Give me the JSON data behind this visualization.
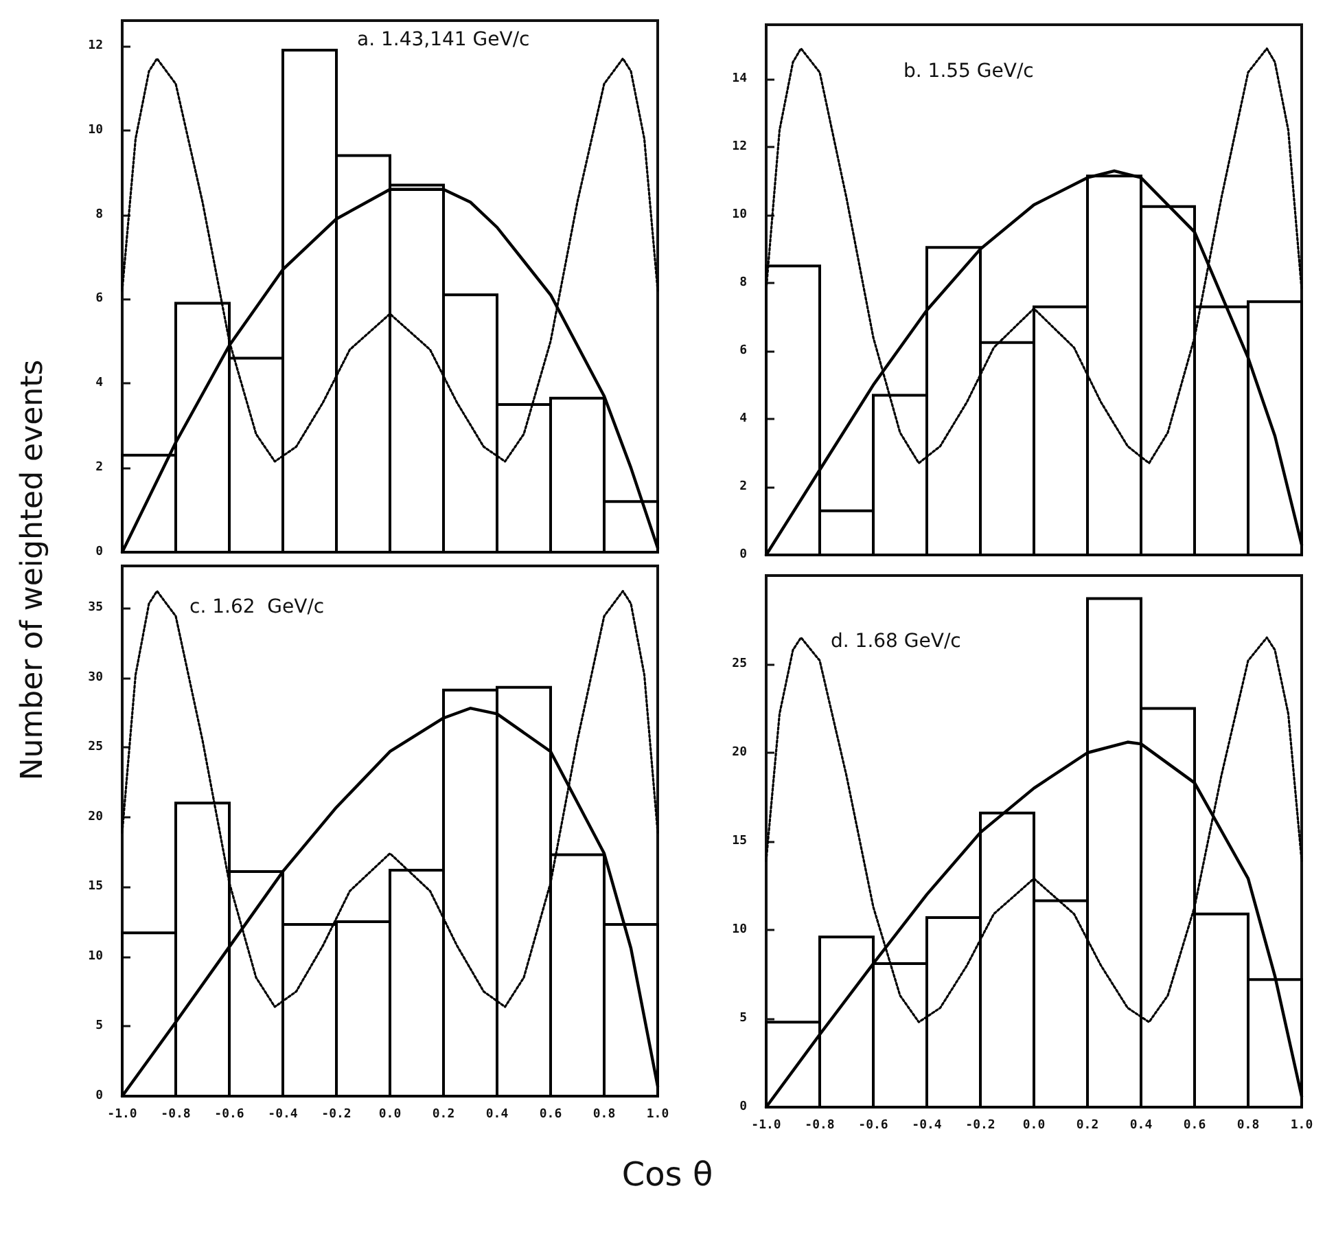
{
  "chart_data": [
    {
      "type": "histogram",
      "title": "a. 1.43,141 GeV/c",
      "ylabel": "Number of weighted events",
      "xlim": [
        -1,
        1
      ],
      "ylim": [
        0,
        12.6
      ],
      "yticks": [
        0,
        2,
        4,
        6,
        8,
        10,
        12
      ],
      "xticks": [
        {
          "value": -1,
          "label": null
        },
        {
          "value": -0.8,
          "label": null
        },
        {
          "value": -0.6,
          "label": null
        },
        {
          "value": -0.4,
          "label": null
        },
        {
          "value": -0.2,
          "label": null
        },
        {
          "value": 0,
          "label": null
        },
        {
          "value": 0.2,
          "label": null
        },
        {
          "value": 0.4,
          "label": null
        },
        {
          "value": 0.6,
          "label": null
        },
        {
          "value": 0.8,
          "label": null
        },
        {
          "value": 1,
          "label": null
        }
      ],
      "tick_labels": "y",
      "grid": false,
      "series": [
        {
          "color": "#000000",
          "bins": [
            -1,
            -0.8,
            -0.6,
            -0.4,
            -0.2,
            0,
            0.2,
            0.4,
            0.6,
            0.8,
            1
          ],
          "values": [
            2.3,
            5.9,
            4.6,
            11.9,
            9.4,
            8.7,
            6.1,
            3.5,
            3.65,
            1.2
          ]
        },
        {
          "type": "line",
          "color": "#000000",
          "line_style": "solid",
          "marker": "none",
          "x": [
            -1,
            -0.8,
            -0.6,
            -0.4,
            -0.2,
            0,
            0.2,
            0.3,
            0.4,
            0.6,
            0.8,
            0.9,
            1
          ],
          "values": [
            0,
            2.6,
            4.9,
            6.7,
            7.9,
            8.6,
            8.6,
            8.3,
            7.7,
            6.1,
            3.7,
            2.0,
            0.1
          ]
        },
        {
          "type": "line",
          "color": "#000000",
          "line_style": "dotted",
          "marker": "none",
          "x": [
            -1,
            -0.95,
            -0.9,
            -0.87,
            -0.8,
            -0.7,
            -0.6,
            -0.5,
            -0.43,
            -0.35,
            -0.25,
            -0.15,
            0,
            0.15,
            0.25,
            0.35,
            0.43,
            0.5,
            0.6,
            0.7,
            0.8,
            0.87,
            0.9,
            0.95,
            1
          ],
          "values": [
            6.2,
            9.8,
            11.4,
            11.7,
            11.1,
            8.3,
            5.0,
            2.8,
            2.15,
            2.5,
            3.55,
            4.8,
            5.65,
            4.8,
            3.55,
            2.5,
            2.15,
            2.8,
            5.0,
            8.3,
            11.1,
            11.7,
            11.4,
            9.8,
            6.2
          ]
        }
      ]
    },
    {
      "type": "histogram",
      "title": "b. 1.55 GeV/c",
      "xlim": [
        -1,
        1
      ],
      "ylim": [
        0,
        15.6
      ],
      "yticks": [
        0,
        2,
        4,
        6,
        8,
        10,
        12,
        14
      ],
      "xticks": [
        {
          "value": -1,
          "label": null
        },
        {
          "value": -0.8,
          "label": null
        },
        {
          "value": -0.6,
          "label": null
        },
        {
          "value": -0.4,
          "label": null
        },
        {
          "value": -0.2,
          "label": null
        },
        {
          "value": 0,
          "label": null
        },
        {
          "value": 0.2,
          "label": null
        },
        {
          "value": 0.4,
          "label": null
        },
        {
          "value": 0.6,
          "label": null
        },
        {
          "value": 0.8,
          "label": null
        },
        {
          "value": 1,
          "label": null
        }
      ],
      "tick_labels": "y",
      "grid": false,
      "series": [
        {
          "color": "#000000",
          "bins": [
            -1,
            -0.8,
            -0.6,
            -0.4,
            -0.2,
            0,
            0.2,
            0.4,
            0.6,
            0.8,
            1
          ],
          "values": [
            8.5,
            1.3,
            4.7,
            9.05,
            6.25,
            7.3,
            11.15,
            10.25,
            7.3,
            7.45
          ]
        },
        {
          "type": "line",
          "color": "#000000",
          "line_style": "solid",
          "marker": "none",
          "x": [
            -1,
            -0.8,
            -0.6,
            -0.4,
            -0.2,
            0,
            0.2,
            0.3,
            0.4,
            0.6,
            0.8,
            0.9,
            1
          ],
          "values": [
            0,
            2.5,
            5.0,
            7.2,
            9.0,
            10.3,
            11.1,
            11.3,
            11.1,
            9.5,
            5.8,
            3.5,
            0.3
          ]
        },
        {
          "type": "line",
          "color": "#000000",
          "line_style": "dotted",
          "marker": "none",
          "x": [
            -1,
            -0.95,
            -0.9,
            -0.87,
            -0.8,
            -0.7,
            -0.6,
            -0.5,
            -0.43,
            -0.35,
            -0.25,
            -0.15,
            0,
            0.15,
            0.25,
            0.35,
            0.43,
            0.5,
            0.6,
            0.7,
            0.8,
            0.87,
            0.9,
            0.95,
            1
          ],
          "values": [
            7.8,
            12.5,
            14.5,
            14.9,
            14.2,
            10.5,
            6.4,
            3.6,
            2.7,
            3.2,
            4.5,
            6.1,
            7.25,
            6.1,
            4.5,
            3.2,
            2.7,
            3.6,
            6.4,
            10.5,
            14.2,
            14.9,
            14.5,
            12.5,
            7.8
          ]
        }
      ]
    },
    {
      "type": "histogram",
      "title": "c. 1.62  GeV/c",
      "xlabel": "Cos θ",
      "xlim": [
        -1,
        1
      ],
      "ylim": [
        0,
        38
      ],
      "yticks": [
        0,
        5,
        10,
        15,
        20,
        25,
        30,
        35
      ],
      "xticks": [
        {
          "value": -1,
          "label": "-1.0"
        },
        {
          "value": -0.8,
          "label": "-0.8"
        },
        {
          "value": -0.6,
          "label": "-0.6"
        },
        {
          "value": -0.4,
          "label": "-0.4"
        },
        {
          "value": -0.2,
          "label": "-0.2"
        },
        {
          "value": 0,
          "label": "0.0"
        },
        {
          "value": 0.2,
          "label": "0.2"
        },
        {
          "value": 0.4,
          "label": "0.4"
        },
        {
          "value": 0.6,
          "label": "0.6"
        },
        {
          "value": 0.8,
          "label": "0.8"
        },
        {
          "value": 1,
          "label": "1.0"
        }
      ],
      "grid": false,
      "series": [
        {
          "color": "#000000",
          "bins": [
            -1,
            -0.8,
            -0.6,
            -0.4,
            -0.2,
            0,
            0.2,
            0.4,
            0.6,
            0.8,
            1
          ],
          "values": [
            11.7,
            21.0,
            16.1,
            12.3,
            12.5,
            16.2,
            29.1,
            29.3,
            17.3,
            12.3
          ]
        },
        {
          "type": "line",
          "color": "#000000",
          "line_style": "solid",
          "marker": "none",
          "x": [
            -1,
            -0.8,
            -0.6,
            -0.4,
            -0.2,
            0,
            0.2,
            0.3,
            0.4,
            0.6,
            0.8,
            0.9,
            1
          ],
          "values": [
            0,
            5.3,
            10.7,
            16.1,
            20.7,
            24.7,
            27.1,
            27.8,
            27.4,
            24.7,
            17.4,
            10.6,
            0.7
          ]
        },
        {
          "type": "line",
          "color": "#000000",
          "line_style": "dotted",
          "marker": "none",
          "x": [
            -1,
            -0.95,
            -0.9,
            -0.87,
            -0.8,
            -0.7,
            -0.6,
            -0.5,
            -0.43,
            -0.35,
            -0.25,
            -0.15,
            0,
            0.15,
            0.25,
            0.35,
            0.43,
            0.5,
            0.6,
            0.7,
            0.8,
            0.87,
            0.9,
            0.95,
            1
          ],
          "values": [
            18.9,
            30.2,
            35.3,
            36.2,
            34.4,
            25.5,
            15.3,
            8.5,
            6.4,
            7.5,
            10.8,
            14.7,
            17.4,
            14.7,
            10.8,
            7.5,
            6.4,
            8.5,
            15.3,
            25.5,
            34.4,
            36.2,
            35.3,
            30.2,
            18.9
          ]
        }
      ]
    },
    {
      "type": "histogram",
      "title": "d. 1.68 GeV/c",
      "xlim": [
        -1,
        1
      ],
      "ylim": [
        0,
        30
      ],
      "yticks": [
        0,
        5,
        10,
        15,
        20,
        25
      ],
      "xticks": [
        {
          "value": -1,
          "label": "-1.0"
        },
        {
          "value": -0.8,
          "label": "-0.8"
        },
        {
          "value": -0.6,
          "label": "-0.6"
        },
        {
          "value": -0.4,
          "label": "-0.4"
        },
        {
          "value": -0.2,
          "label": "-0.2"
        },
        {
          "value": 0,
          "label": "0.0"
        },
        {
          "value": 0.2,
          "label": "0.2"
        },
        {
          "value": 0.4,
          "label": "0.4"
        },
        {
          "value": 0.6,
          "label": "0.6"
        },
        {
          "value": 0.8,
          "label": "0.8"
        },
        {
          "value": 1,
          "label": "1.0"
        }
      ],
      "grid": false,
      "series": [
        {
          "color": "#000000",
          "bins": [
            -1,
            -0.8,
            -0.6,
            -0.4,
            -0.2,
            0,
            0.2,
            0.4,
            0.6,
            0.8,
            1
          ],
          "values": [
            4.8,
            9.6,
            8.1,
            10.7,
            16.6,
            11.65,
            28.7,
            22.5,
            10.9,
            7.2
          ]
        },
        {
          "type": "line",
          "color": "#000000",
          "line_style": "solid",
          "marker": "none",
          "x": [
            -1,
            -0.8,
            -0.6,
            -0.4,
            -0.2,
            0,
            0.2,
            0.35,
            0.4,
            0.6,
            0.8,
            0.9,
            1
          ],
          "values": [
            0,
            4.1,
            8.1,
            12.0,
            15.5,
            18.0,
            20.0,
            20.6,
            20.5,
            18.3,
            12.9,
            7.4,
            0.6
          ]
        },
        {
          "type": "line",
          "color": "#000000",
          "line_style": "dotted",
          "marker": "none",
          "x": [
            -1,
            -0.95,
            -0.9,
            -0.87,
            -0.8,
            -0.7,
            -0.6,
            -0.5,
            -0.43,
            -0.35,
            -0.25,
            -0.15,
            0,
            0.15,
            0.25,
            0.35,
            0.43,
            0.5,
            0.6,
            0.7,
            0.8,
            0.87,
            0.9,
            0.95,
            1
          ],
          "values": [
            13.9,
            22.2,
            25.8,
            26.5,
            25.2,
            18.7,
            11.3,
            6.3,
            4.8,
            5.6,
            8.0,
            10.9,
            12.9,
            10.9,
            8.0,
            5.6,
            4.8,
            6.3,
            11.3,
            18.7,
            25.2,
            26.5,
            25.8,
            22.2,
            13.9
          ]
        }
      ]
    }
  ]
}
